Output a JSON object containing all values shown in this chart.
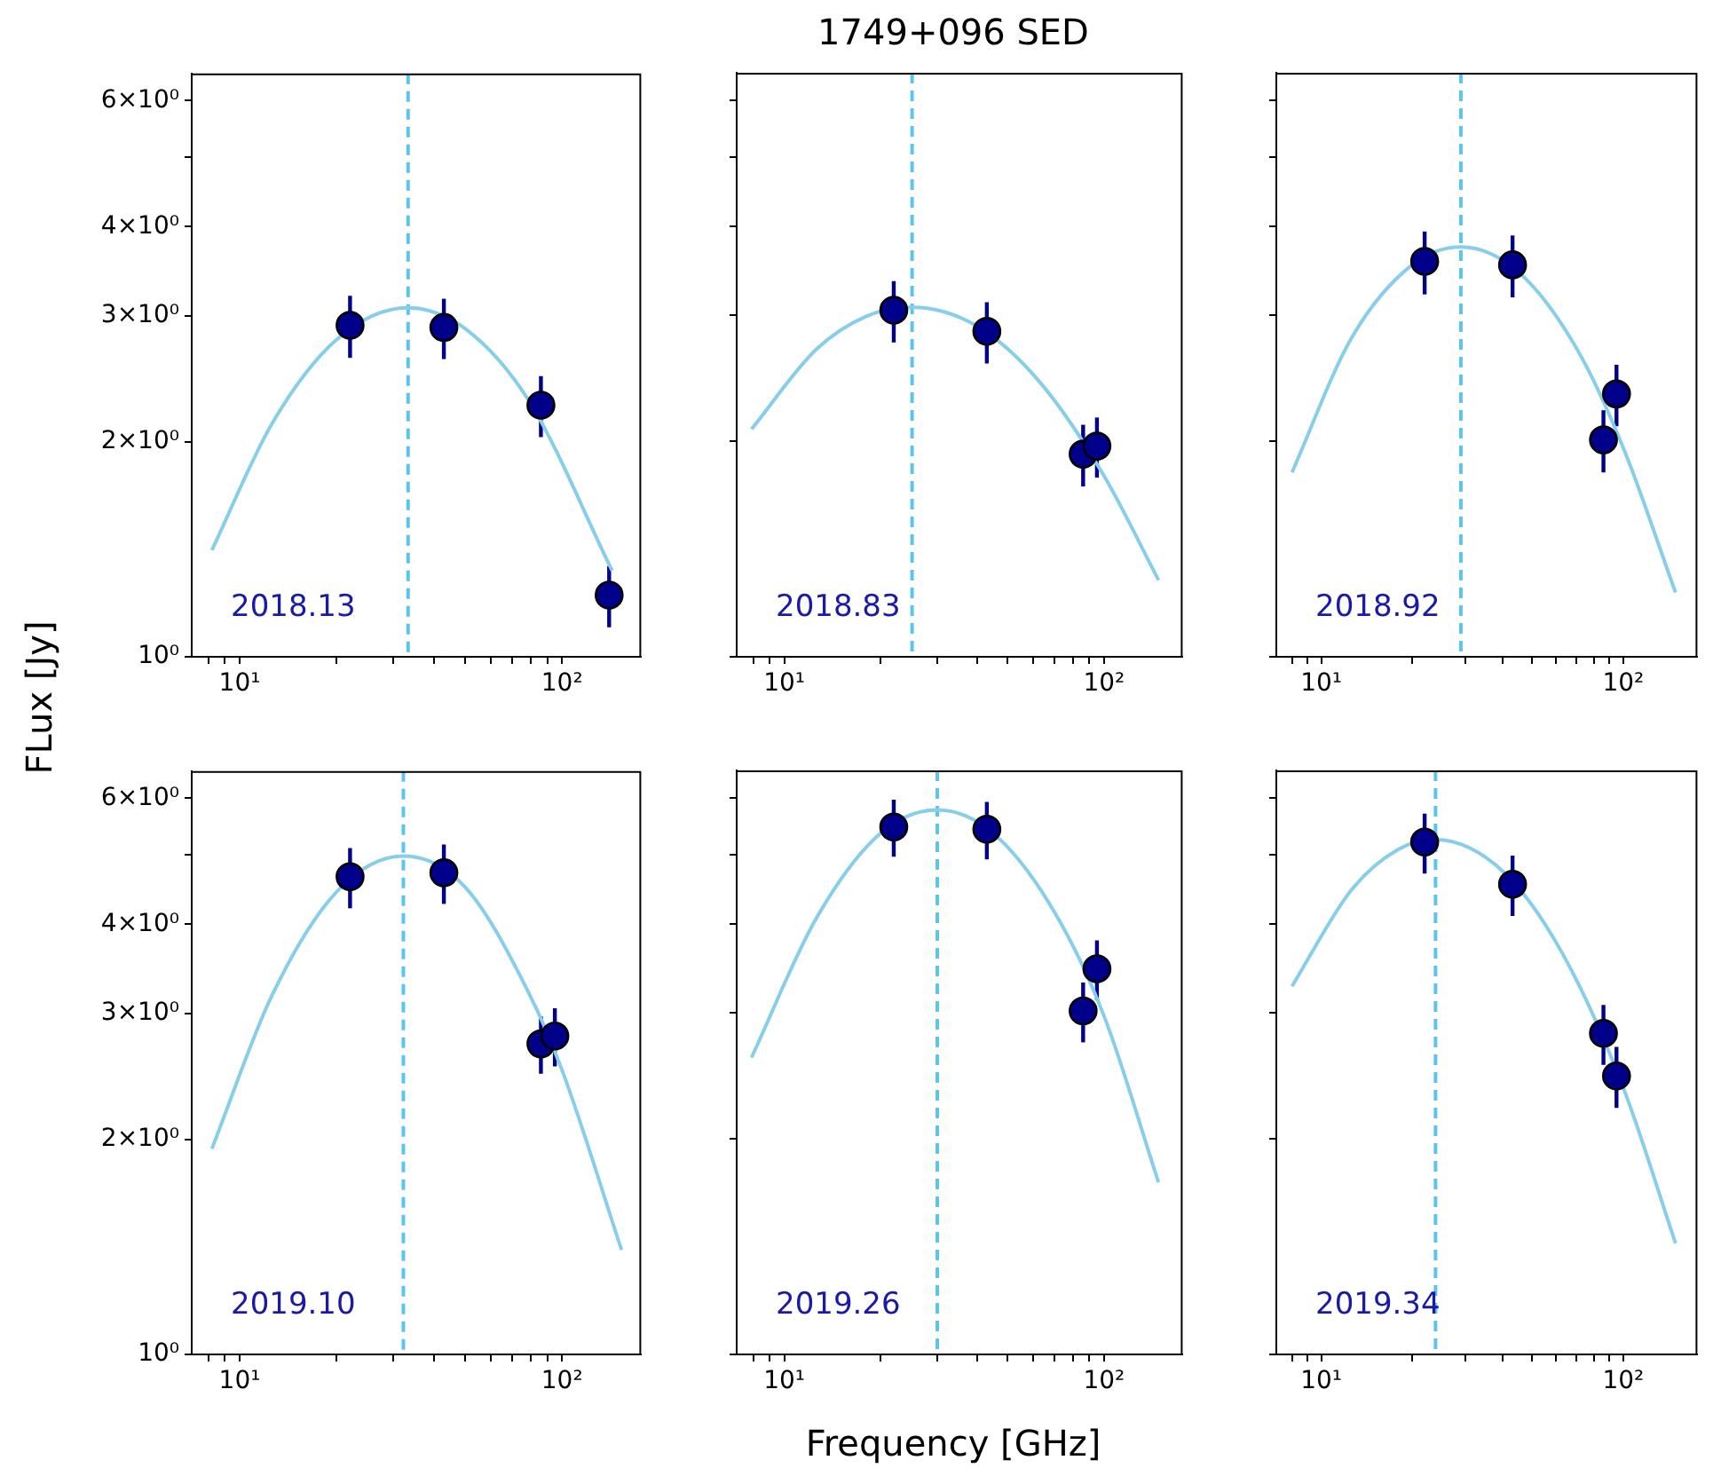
{
  "chart_data": [
    {
      "type": "scatter",
      "log": "xy",
      "grid": false,
      "xlim": [
        7.1,
        176
      ],
      "ylim": [
        1,
        6.55
      ],
      "xticks": [
        {
          "value": 8,
          "label": null
        },
        {
          "value": 9,
          "label": null
        },
        {
          "value": 10,
          "label": "10¹"
        },
        {
          "value": 20,
          "label": null
        },
        {
          "value": 30,
          "label": null
        },
        {
          "value": 40,
          "label": null
        },
        {
          "value": 50,
          "label": null
        },
        {
          "value": 60,
          "label": null
        },
        {
          "value": 70,
          "label": null
        },
        {
          "value": 80,
          "label": null
        },
        {
          "value": 90,
          "label": null
        },
        {
          "value": 100,
          "label": "10²"
        }
      ],
      "yticks": [
        {
          "value": 1,
          "label": "10⁰"
        },
        {
          "value": 2,
          "label": "2×10⁰"
        },
        {
          "value": 3,
          "label": "3×10⁰"
        },
        {
          "value": 4,
          "label": "4×10⁰"
        },
        {
          "value": 5,
          "label": null
        },
        {
          "value": 6,
          "label": "6×10⁰"
        }
      ],
      "annotations": [
        "2018.13"
      ],
      "ref_lines": [
        {
          "axis": "x",
          "value": 33.3,
          "color": "#5bc5ee",
          "line_style": "dashed"
        }
      ],
      "series": [
        {
          "type": "scatter",
          "marker": "circle",
          "color": "#00008b",
          "x": [
            22,
            43,
            86,
            140
          ],
          "values": [
            2.91,
            2.89,
            2.25,
            1.22
          ],
          "errors": [
            0.29,
            0.28,
            0.22,
            0.12
          ]
        },
        {
          "type": "line",
          "marker": "none",
          "color": "#87ceeb",
          "x": [
            8.2,
            12.6,
            20,
            33.3,
            50,
            79,
            143
          ],
          "values": [
            1.41,
            2.12,
            2.78,
            3.08,
            2.88,
            2.28,
            1.32
          ]
        }
      ]
    },
    {
      "type": "scatter",
      "title": "1749+096 SED",
      "log": "xy",
      "grid": false,
      "tick_labels": "x",
      "xlim": [
        7.1,
        176
      ],
      "ylim": [
        1,
        6.55
      ],
      "xticks": [
        {
          "value": 8,
          "label": null
        },
        {
          "value": 9,
          "label": null
        },
        {
          "value": 10,
          "label": "10¹"
        },
        {
          "value": 20,
          "label": null
        },
        {
          "value": 30,
          "label": null
        },
        {
          "value": 40,
          "label": null
        },
        {
          "value": 50,
          "label": null
        },
        {
          "value": 60,
          "label": null
        },
        {
          "value": 70,
          "label": null
        },
        {
          "value": 80,
          "label": null
        },
        {
          "value": 90,
          "label": null
        },
        {
          "value": 100,
          "label": "10²"
        }
      ],
      "yticks": [
        {
          "value": 1,
          "label": null
        },
        {
          "value": 2,
          "label": null
        },
        {
          "value": 3,
          "label": null
        },
        {
          "value": 4,
          "label": null
        },
        {
          "value": 5,
          "label": null
        },
        {
          "value": 6,
          "label": null
        }
      ],
      "annotations": [
        "2018.83"
      ],
      "ref_lines": [
        {
          "axis": "x",
          "value": 25.1,
          "color": "#5bc5ee",
          "line_style": "dashed"
        }
      ],
      "series": [
        {
          "type": "scatter",
          "marker": "circle",
          "color": "#00008b",
          "x": [
            22,
            43,
            86,
            95
          ],
          "values": [
            3.05,
            2.85,
            1.92,
            1.97
          ],
          "errors": [
            0.3,
            0.28,
            0.19,
            0.19
          ]
        },
        {
          "type": "line",
          "marker": "none",
          "color": "#87ceeb",
          "x": [
            7.9,
            12.6,
            18,
            25.1,
            40,
            63,
            100,
            148
          ],
          "values": [
            2.08,
            2.69,
            2.99,
            3.08,
            2.9,
            2.42,
            1.79,
            1.28
          ]
        }
      ]
    },
    {
      "type": "scatter",
      "log": "xy",
      "grid": false,
      "tick_labels": "x",
      "xlim": [
        7.1,
        176
      ],
      "ylim": [
        1,
        6.55
      ],
      "xticks": [
        {
          "value": 8,
          "label": null
        },
        {
          "value": 9,
          "label": null
        },
        {
          "value": 10,
          "label": "10¹"
        },
        {
          "value": 20,
          "label": null
        },
        {
          "value": 30,
          "label": null
        },
        {
          "value": 40,
          "label": null
        },
        {
          "value": 50,
          "label": null
        },
        {
          "value": 60,
          "label": null
        },
        {
          "value": 70,
          "label": null
        },
        {
          "value": 80,
          "label": null
        },
        {
          "value": 90,
          "label": null
        },
        {
          "value": 100,
          "label": "10²"
        }
      ],
      "yticks": [
        {
          "value": 1,
          "label": null
        },
        {
          "value": 2,
          "label": null
        },
        {
          "value": 3,
          "label": null
        },
        {
          "value": 4,
          "label": null
        },
        {
          "value": 5,
          "label": null
        },
        {
          "value": 6,
          "label": null
        }
      ],
      "annotations": [
        "2018.92"
      ],
      "ref_lines": [
        {
          "axis": "x",
          "value": 29,
          "color": "#5bc5ee",
          "line_style": "dashed"
        }
      ],
      "series": [
        {
          "type": "scatter",
          "marker": "circle",
          "color": "#00008b",
          "x": [
            22,
            43,
            86,
            95
          ],
          "values": [
            3.57,
            3.53,
            2.01,
            2.33
          ],
          "errors": [
            0.36,
            0.35,
            0.2,
            0.23
          ]
        },
        {
          "type": "line",
          "marker": "none",
          "color": "#87ceeb",
          "x": [
            8,
            12.6,
            20,
            29,
            45,
            70,
            100,
            149
          ],
          "values": [
            1.81,
            2.79,
            3.53,
            3.74,
            3.45,
            2.7,
            1.96,
            1.23
          ]
        }
      ]
    },
    {
      "type": "scatter",
      "log": "xy",
      "grid": false,
      "xlim": [
        7.1,
        176
      ],
      "ylim": [
        1,
        6.55
      ],
      "xticks": [
        {
          "value": 8,
          "label": null
        },
        {
          "value": 9,
          "label": null
        },
        {
          "value": 10,
          "label": "10¹"
        },
        {
          "value": 20,
          "label": null
        },
        {
          "value": 30,
          "label": null
        },
        {
          "value": 40,
          "label": null
        },
        {
          "value": 50,
          "label": null
        },
        {
          "value": 60,
          "label": null
        },
        {
          "value": 70,
          "label": null
        },
        {
          "value": 80,
          "label": null
        },
        {
          "value": 90,
          "label": null
        },
        {
          "value": 100,
          "label": "10²"
        }
      ],
      "yticks": [
        {
          "value": 1,
          "label": "10⁰"
        },
        {
          "value": 2,
          "label": "2×10⁰"
        },
        {
          "value": 3,
          "label": "3×10⁰"
        },
        {
          "value": 4,
          "label": "4×10⁰"
        },
        {
          "value": 5,
          "label": null
        },
        {
          "value": 6,
          "label": "6×10⁰"
        }
      ],
      "ylabel": "FLux [Jy]",
      "annotations": [
        "2019.10"
      ],
      "ref_lines": [
        {
          "axis": "x",
          "value": 32.2,
          "color": "#5bc5ee",
          "line_style": "dashed"
        }
      ],
      "series": [
        {
          "type": "scatter",
          "marker": "circle",
          "color": "#00008b",
          "x": [
            22,
            43,
            86,
            95
          ],
          "values": [
            4.66,
            4.72,
            2.72,
            2.79
          ],
          "errors": [
            0.45,
            0.45,
            0.25,
            0.26
          ]
        },
        {
          "type": "line",
          "marker": "none",
          "color": "#87ceeb",
          "x": [
            8.2,
            12.6,
            20,
            32.2,
            50,
            79,
            100,
            153
          ],
          "values": [
            1.94,
            3.18,
            4.44,
            4.98,
            4.51,
            3.2,
            2.5,
            1.4
          ]
        }
      ]
    },
    {
      "type": "scatter",
      "log": "xy",
      "grid": false,
      "tick_labels": "x",
      "xlim": [
        7.1,
        176
      ],
      "ylim": [
        1,
        6.55
      ],
      "xticks": [
        {
          "value": 8,
          "label": null
        },
        {
          "value": 9,
          "label": null
        },
        {
          "value": 10,
          "label": "10¹"
        },
        {
          "value": 20,
          "label": null
        },
        {
          "value": 30,
          "label": null
        },
        {
          "value": 40,
          "label": null
        },
        {
          "value": 50,
          "label": null
        },
        {
          "value": 60,
          "label": null
        },
        {
          "value": 70,
          "label": null
        },
        {
          "value": 80,
          "label": null
        },
        {
          "value": 90,
          "label": null
        },
        {
          "value": 100,
          "label": "10²"
        }
      ],
      "yticks": [
        {
          "value": 1,
          "label": null
        },
        {
          "value": 2,
          "label": null
        },
        {
          "value": 3,
          "label": null
        },
        {
          "value": 4,
          "label": null
        },
        {
          "value": 5,
          "label": null
        },
        {
          "value": 6,
          "label": null
        }
      ],
      "xlabel": "Frequency [GHz]",
      "annotations": [
        "2019.26"
      ],
      "ref_lines": [
        {
          "axis": "x",
          "value": 30.1,
          "color": "#5bc5ee",
          "line_style": "dashed"
        }
      ],
      "series": [
        {
          "type": "scatter",
          "marker": "circle",
          "color": "#00008b",
          "x": [
            22,
            43,
            86,
            95
          ],
          "values": [
            5.46,
            5.42,
            3.02,
            3.46
          ],
          "errors": [
            0.5,
            0.5,
            0.29,
            0.33
          ]
        },
        {
          "type": "line",
          "marker": "none",
          "color": "#87ceeb",
          "x": [
            7.9,
            12.6,
            20,
            30.1,
            45,
            70,
            100,
            148
          ],
          "values": [
            2.6,
            4.07,
            5.35,
            5.77,
            5.35,
            4.15,
            2.97,
            1.74
          ]
        }
      ]
    },
    {
      "type": "scatter",
      "log": "xy",
      "grid": false,
      "tick_labels": "x",
      "xlim": [
        7.1,
        176
      ],
      "ylim": [
        1,
        6.55
      ],
      "xticks": [
        {
          "value": 8,
          "label": null
        },
        {
          "value": 9,
          "label": null
        },
        {
          "value": 10,
          "label": "10¹"
        },
        {
          "value": 20,
          "label": null
        },
        {
          "value": 30,
          "label": null
        },
        {
          "value": 40,
          "label": null
        },
        {
          "value": 50,
          "label": null
        },
        {
          "value": 60,
          "label": null
        },
        {
          "value": 70,
          "label": null
        },
        {
          "value": 80,
          "label": null
        },
        {
          "value": 90,
          "label": null
        },
        {
          "value": 100,
          "label": "10²"
        }
      ],
      "yticks": [
        {
          "value": 1,
          "label": null
        },
        {
          "value": 2,
          "label": null
        },
        {
          "value": 3,
          "label": null
        },
        {
          "value": 4,
          "label": null
        },
        {
          "value": 5,
          "label": null
        },
        {
          "value": 6,
          "label": null
        }
      ],
      "annotations": [
        "2019.34"
      ],
      "ref_lines": [
        {
          "axis": "x",
          "value": 23.9,
          "color": "#5bc5ee",
          "line_style": "dashed"
        }
      ],
      "series": [
        {
          "type": "scatter",
          "marker": "circle",
          "color": "#00008b",
          "x": [
            22,
            43,
            86,
            95
          ],
          "values": [
            5.2,
            4.54,
            2.81,
            2.45
          ],
          "errors": [
            0.5,
            0.44,
            0.27,
            0.24
          ]
        },
        {
          "type": "line",
          "marker": "none",
          "color": "#87ceeb",
          "x": [
            8,
            12.6,
            18,
            23.9,
            40,
            63,
            100,
            149
          ],
          "values": [
            3.27,
            4.46,
            5.08,
            5.24,
            4.73,
            3.63,
            2.36,
            1.43
          ]
        }
      ]
    }
  ]
}
